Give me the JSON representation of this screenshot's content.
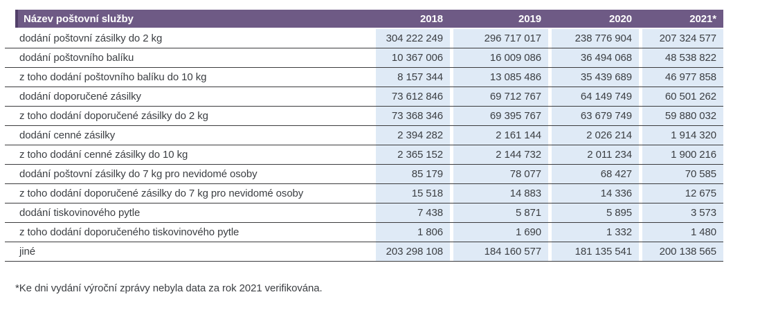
{
  "table": {
    "columns": [
      "Název poštovní služby",
      "2018",
      "2019",
      "2020",
      "2021*"
    ],
    "rows": [
      {
        "label": "dodání poštovní zásilky do 2 kg",
        "values": [
          "304 222 249",
          "296 717 017",
          "238 776 904",
          "207 324 577"
        ]
      },
      {
        "label": "dodání poštovního balíku",
        "values": [
          "10 367 006",
          "16 009 086",
          "36 494 068",
          "48 538 822"
        ]
      },
      {
        "label": "z toho dodání poštovního balíku do 10 kg",
        "values": [
          "8 157 344",
          "13 085 486",
          "35 439 689",
          "46 977 858"
        ]
      },
      {
        "label": "dodání doporučené zásilky",
        "values": [
          "73 612 846",
          "69 712 767",
          "64 149 749",
          "60 501 262"
        ]
      },
      {
        "label": "z toho dodání doporučené zásilky do 2 kg",
        "values": [
          "73 368 346",
          "69 395 767",
          "63 679 749",
          "59 880 032"
        ]
      },
      {
        "label": "dodání cenné zásilky",
        "values": [
          "2 394 282",
          "2 161 144",
          "2 026 214",
          "1 914 320"
        ]
      },
      {
        "label": "z toho dodání cenné zásilky do 10 kg",
        "values": [
          "2 365 152",
          "2 144 732",
          "2 011 234",
          "1 900 216"
        ]
      },
      {
        "label": "dodání poštovní zásilky do 7 kg pro nevidomé osoby",
        "values": [
          "85 179",
          "78 077",
          "68 427",
          "70 585"
        ]
      },
      {
        "label": "z toho dodání doporučené zásilky do 7 kg pro nevidomé osoby",
        "values": [
          "15 518",
          "14 883",
          "14 336",
          "12 675"
        ]
      },
      {
        "label": "dodání tiskovinového pytle",
        "values": [
          "7 438",
          "5 871",
          "5 895",
          "3 573"
        ]
      },
      {
        "label": "z toho dodání doporučeného tiskovinového pytle",
        "values": [
          "1 806",
          "1 690",
          "1 332",
          "1 480"
        ]
      },
      {
        "label": "jiné",
        "values": [
          "203 298 108",
          "184 160 577",
          "181 135 541",
          "200 138 565"
        ]
      }
    ]
  },
  "footnote": "*Ke dni vydání výroční zprávy nebyla data za rok 2021 verifikována.",
  "colors": {
    "header_bg": "#6e5a85",
    "header_accent": "#53406a",
    "cell_bg": "#dfeaf6",
    "row_border": "#3a3a3c",
    "text": "#3b3e42",
    "header_text": "#ffffff"
  }
}
